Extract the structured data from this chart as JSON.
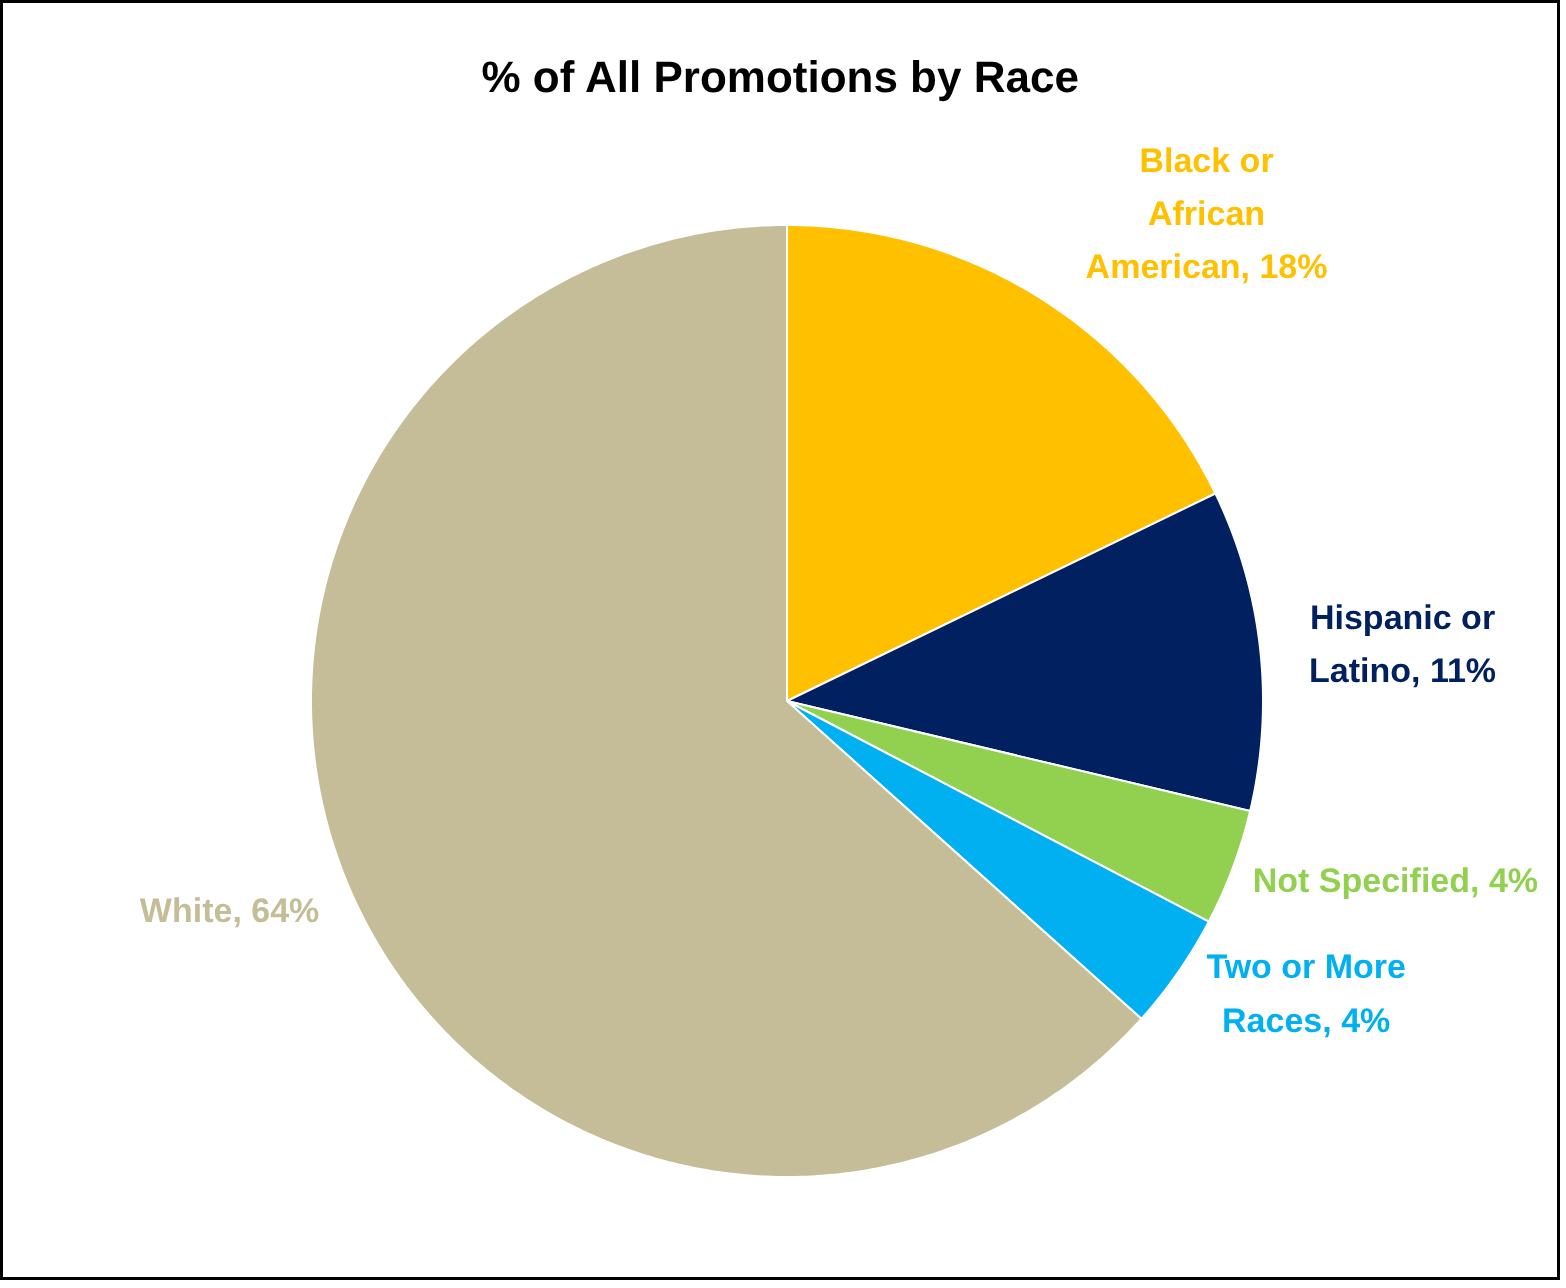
{
  "chart_data": {
    "type": "pie",
    "title": "% of All Promotions by Race",
    "categories": [
      "Black or African American",
      "Hispanic or Latino",
      "Not Specified",
      "Two or More Races",
      "White"
    ],
    "values": [
      18,
      11,
      4,
      4,
      64
    ],
    "colors": [
      "#ffc000",
      "#002060",
      "#92d050",
      "#00b0f0",
      "#c4bd97"
    ],
    "value_labels": [
      "18%",
      "11%",
      "4%",
      "4%",
      "64%"
    ]
  }
}
